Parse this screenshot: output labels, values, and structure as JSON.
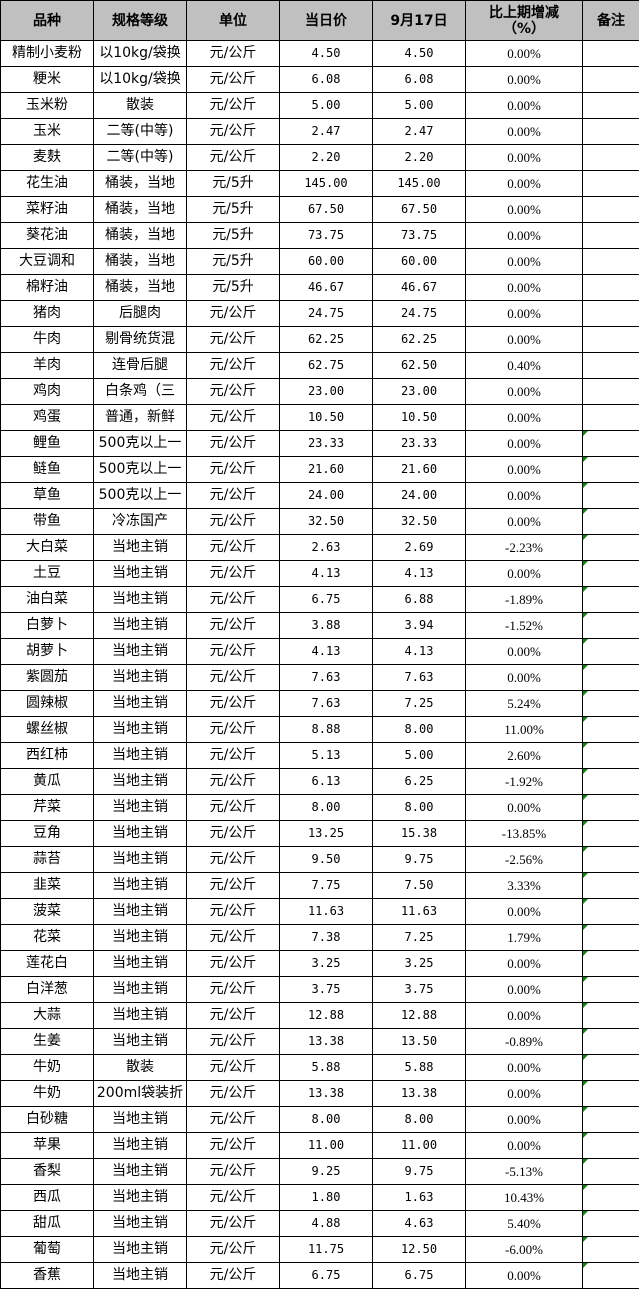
{
  "headers": [
    "品种",
    "规格等级",
    "单位",
    "当日价",
    "9月17日",
    "比上期增减（%）",
    "备注"
  ],
  "comment_marker_color": "#1a7f1a",
  "rows": [
    {
      "name": "精制小麦粉",
      "spec": "以10kg/袋换",
      "unit": "元/公斤",
      "today": "4.50",
      "prev": "4.50",
      "change": "0.00%",
      "note": "",
      "mark": false
    },
    {
      "name": "粳米",
      "spec": "以10kg/袋换",
      "unit": "元/公斤",
      "today": "6.08",
      "prev": "6.08",
      "change": "0.00%",
      "note": "",
      "mark": false
    },
    {
      "name": "玉米粉",
      "spec": "散装",
      "unit": "元/公斤",
      "today": "5.00",
      "prev": "5.00",
      "change": "0.00%",
      "note": "",
      "mark": false
    },
    {
      "name": "玉米",
      "spec": "二等(中等)",
      "unit": "元/公斤",
      "today": "2.47",
      "prev": "2.47",
      "change": "0.00%",
      "note": "",
      "mark": false
    },
    {
      "name": "麦麸",
      "spec": "二等(中等)",
      "unit": "元/公斤",
      "today": "2.20",
      "prev": "2.20",
      "change": "0.00%",
      "note": "",
      "mark": false
    },
    {
      "name": "花生油",
      "spec": "桶装，当地",
      "unit": "元/5升",
      "today": "145.00",
      "prev": "145.00",
      "change": "0.00%",
      "note": "",
      "mark": false
    },
    {
      "name": "菜籽油",
      "spec": "桶装，当地",
      "unit": "元/5升",
      "today": "67.50",
      "prev": "67.50",
      "change": "0.00%",
      "note": "",
      "mark": false
    },
    {
      "name": "葵花油",
      "spec": "桶装，当地",
      "unit": "元/5升",
      "today": "73.75",
      "prev": "73.75",
      "change": "0.00%",
      "note": "",
      "mark": false
    },
    {
      "name": "大豆调和",
      "spec": "桶装，当地",
      "unit": "元/5升",
      "today": "60.00",
      "prev": "60.00",
      "change": "0.00%",
      "note": "",
      "mark": false
    },
    {
      "name": "棉籽油",
      "spec": "桶装，当地",
      "unit": "元/5升",
      "today": "46.67",
      "prev": "46.67",
      "change": "0.00%",
      "note": "",
      "mark": false
    },
    {
      "name": "猪肉",
      "spec": "后腿肉",
      "unit": "元/公斤",
      "today": "24.75",
      "prev": "24.75",
      "change": "0.00%",
      "note": "",
      "mark": false
    },
    {
      "name": "牛肉",
      "spec": "剔骨统货混",
      "unit": "元/公斤",
      "today": "62.25",
      "prev": "62.25",
      "change": "0.00%",
      "note": "",
      "mark": false
    },
    {
      "name": "羊肉",
      "spec": "连骨后腿",
      "unit": "元/公斤",
      "today": "62.75",
      "prev": "62.50",
      "change": "0.40%",
      "note": "",
      "mark": false
    },
    {
      "name": "鸡肉",
      "spec": "白条鸡（三",
      "unit": "元/公斤",
      "today": "23.00",
      "prev": "23.00",
      "change": "0.00%",
      "note": "",
      "mark": false
    },
    {
      "name": "鸡蛋",
      "spec": "普通，新鲜",
      "unit": "元/公斤",
      "today": "10.50",
      "prev": "10.50",
      "change": "0.00%",
      "note": "",
      "mark": false
    },
    {
      "name": "鲤鱼",
      "spec": "500克以上一",
      "unit": "元/公斤",
      "today": "23.33",
      "prev": "23.33",
      "change": "0.00%",
      "note": "",
      "mark": true
    },
    {
      "name": "鲢鱼",
      "spec": "500克以上一",
      "unit": "元/公斤",
      "today": "21.60",
      "prev": "21.60",
      "change": "0.00%",
      "note": "",
      "mark": true
    },
    {
      "name": "草鱼",
      "spec": "500克以上一",
      "unit": "元/公斤",
      "today": "24.00",
      "prev": "24.00",
      "change": "0.00%",
      "note": "",
      "mark": true
    },
    {
      "name": "带鱼",
      "spec": "冷冻国产",
      "unit": "元/公斤",
      "today": "32.50",
      "prev": "32.50",
      "change": "0.00%",
      "note": "",
      "mark": true
    },
    {
      "name": "大白菜",
      "spec": "当地主销",
      "unit": "元/公斤",
      "today": "2.63",
      "prev": "2.69",
      "change": "-2.23%",
      "note": "",
      "mark": true
    },
    {
      "name": "土豆",
      "spec": "当地主销",
      "unit": "元/公斤",
      "today": "4.13",
      "prev": "4.13",
      "change": "0.00%",
      "note": "",
      "mark": true
    },
    {
      "name": "油白菜",
      "spec": "当地主销",
      "unit": "元/公斤",
      "today": "6.75",
      "prev": "6.88",
      "change": "-1.89%",
      "note": "",
      "mark": true
    },
    {
      "name": "白萝卜",
      "spec": "当地主销",
      "unit": "元/公斤",
      "today": "3.88",
      "prev": "3.94",
      "change": "-1.52%",
      "note": "",
      "mark": true
    },
    {
      "name": "胡萝卜",
      "spec": "当地主销",
      "unit": "元/公斤",
      "today": "4.13",
      "prev": "4.13",
      "change": "0.00%",
      "note": "",
      "mark": true
    },
    {
      "name": "紫圆茄",
      "spec": "当地主销",
      "unit": "元/公斤",
      "today": "7.63",
      "prev": "7.63",
      "change": "0.00%",
      "note": "",
      "mark": true
    },
    {
      "name": "圆辣椒",
      "spec": "当地主销",
      "unit": "元/公斤",
      "today": "7.63",
      "prev": "7.25",
      "change": "5.24%",
      "note": "",
      "mark": true
    },
    {
      "name": "螺丝椒",
      "spec": "当地主销",
      "unit": "元/公斤",
      "today": "8.88",
      "prev": "8.00",
      "change": "11.00%",
      "note": "",
      "mark": true
    },
    {
      "name": "西红柿",
      "spec": "当地主销",
      "unit": "元/公斤",
      "today": "5.13",
      "prev": "5.00",
      "change": "2.60%",
      "note": "",
      "mark": true
    },
    {
      "name": "黄瓜",
      "spec": "当地主销",
      "unit": "元/公斤",
      "today": "6.13",
      "prev": "6.25",
      "change": "-1.92%",
      "note": "",
      "mark": true
    },
    {
      "name": "芹菜",
      "spec": "当地主销",
      "unit": "元/公斤",
      "today": "8.00",
      "prev": "8.00",
      "change": "0.00%",
      "note": "",
      "mark": true
    },
    {
      "name": "豆角",
      "spec": "当地主销",
      "unit": "元/公斤",
      "today": "13.25",
      "prev": "15.38",
      "change": "-13.85%",
      "note": "",
      "mark": true
    },
    {
      "name": "蒜苔",
      "spec": "当地主销",
      "unit": "元/公斤",
      "today": "9.50",
      "prev": "9.75",
      "change": "-2.56%",
      "note": "",
      "mark": true
    },
    {
      "name": "韭菜",
      "spec": "当地主销",
      "unit": "元/公斤",
      "today": "7.75",
      "prev": "7.50",
      "change": "3.33%",
      "note": "",
      "mark": true
    },
    {
      "name": "菠菜",
      "spec": "当地主销",
      "unit": "元/公斤",
      "today": "11.63",
      "prev": "11.63",
      "change": "0.00%",
      "note": "",
      "mark": true
    },
    {
      "name": "花菜",
      "spec": "当地主销",
      "unit": "元/公斤",
      "today": "7.38",
      "prev": "7.25",
      "change": "1.79%",
      "note": "",
      "mark": true
    },
    {
      "name": "莲花白",
      "spec": "当地主销",
      "unit": "元/公斤",
      "today": "3.25",
      "prev": "3.25",
      "change": "0.00%",
      "note": "",
      "mark": true
    },
    {
      "name": "白洋葱",
      "spec": "当地主销",
      "unit": "元/公斤",
      "today": "3.75",
      "prev": "3.75",
      "change": "0.00%",
      "note": "",
      "mark": true
    },
    {
      "name": "大蒜",
      "spec": "当地主销",
      "unit": "元/公斤",
      "today": "12.88",
      "prev": "12.88",
      "change": "0.00%",
      "note": "",
      "mark": true
    },
    {
      "name": "生姜",
      "spec": "当地主销",
      "unit": "元/公斤",
      "today": "13.38",
      "prev": "13.50",
      "change": "-0.89%",
      "note": "",
      "mark": true
    },
    {
      "name": "牛奶",
      "spec": "散装",
      "unit": "元/公斤",
      "today": "5.88",
      "prev": "5.88",
      "change": "0.00%",
      "note": "",
      "mark": true
    },
    {
      "name": "牛奶",
      "spec": "200ml袋装折",
      "unit": "元/公斤",
      "today": "13.38",
      "prev": "13.38",
      "change": "0.00%",
      "note": "",
      "mark": true
    },
    {
      "name": "白砂糖",
      "spec": "当地主销",
      "unit": "元/公斤",
      "today": "8.00",
      "prev": "8.00",
      "change": "0.00%",
      "note": "",
      "mark": true
    },
    {
      "name": "苹果",
      "spec": "当地主销",
      "unit": "元/公斤",
      "today": "11.00",
      "prev": "11.00",
      "change": "0.00%",
      "note": "",
      "mark": true
    },
    {
      "name": "香梨",
      "spec": "当地主销",
      "unit": "元/公斤",
      "today": "9.25",
      "prev": "9.75",
      "change": "-5.13%",
      "note": "",
      "mark": true
    },
    {
      "name": "西瓜",
      "spec": "当地主销",
      "unit": "元/公斤",
      "today": "1.80",
      "prev": "1.63",
      "change": "10.43%",
      "note": "",
      "mark": true
    },
    {
      "name": "甜瓜",
      "spec": "当地主销",
      "unit": "元/公斤",
      "today": "4.88",
      "prev": "4.63",
      "change": "5.40%",
      "note": "",
      "mark": true
    },
    {
      "name": "葡萄",
      "spec": "当地主销",
      "unit": "元/公斤",
      "today": "11.75",
      "prev": "12.50",
      "change": "-6.00%",
      "note": "",
      "mark": true
    },
    {
      "name": "香蕉",
      "spec": "当地主销",
      "unit": "元/公斤",
      "today": "6.75",
      "prev": "6.75",
      "change": "0.00%",
      "note": "",
      "mark": true
    }
  ]
}
